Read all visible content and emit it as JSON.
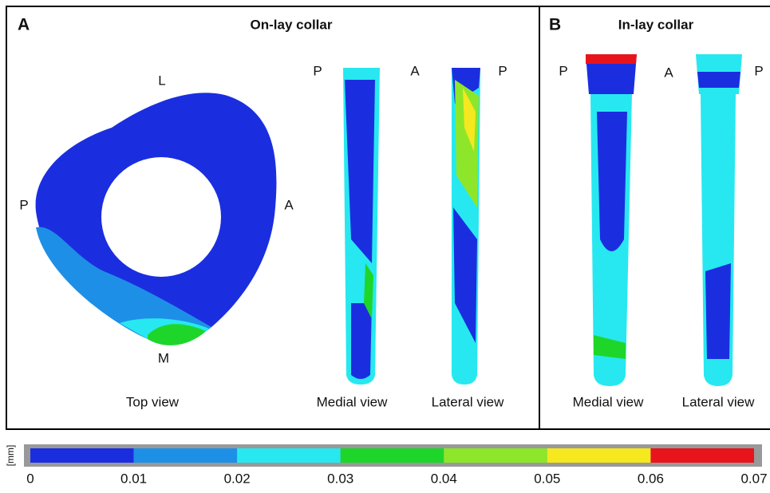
{
  "panels": [
    {
      "label": "A",
      "title": "On-lay collar",
      "top_view": {
        "labels": [
          "L",
          "P",
          "A",
          "M"
        ],
        "caption": "Top view"
      },
      "side_labels": [
        "P",
        "A",
        "P"
      ],
      "captions": [
        "Medial view",
        "Lateral view"
      ]
    },
    {
      "label": "B",
      "title": "In-lay collar",
      "side_labels": [
        "P",
        "A",
        "P"
      ],
      "captions": [
        "Medial view",
        "Lateral view"
      ]
    }
  ],
  "colorbar": {
    "unit": "[mm]",
    "ticks": [
      0,
      0.01,
      0.02,
      0.03,
      0.04,
      0.05,
      0.06,
      0.07
    ],
    "colors": [
      "#1a2ee0",
      "#1e8fe6",
      "#27e8f0",
      "#1ed62a",
      "#8ee62a",
      "#f5e81e",
      "#e8141c"
    ]
  }
}
